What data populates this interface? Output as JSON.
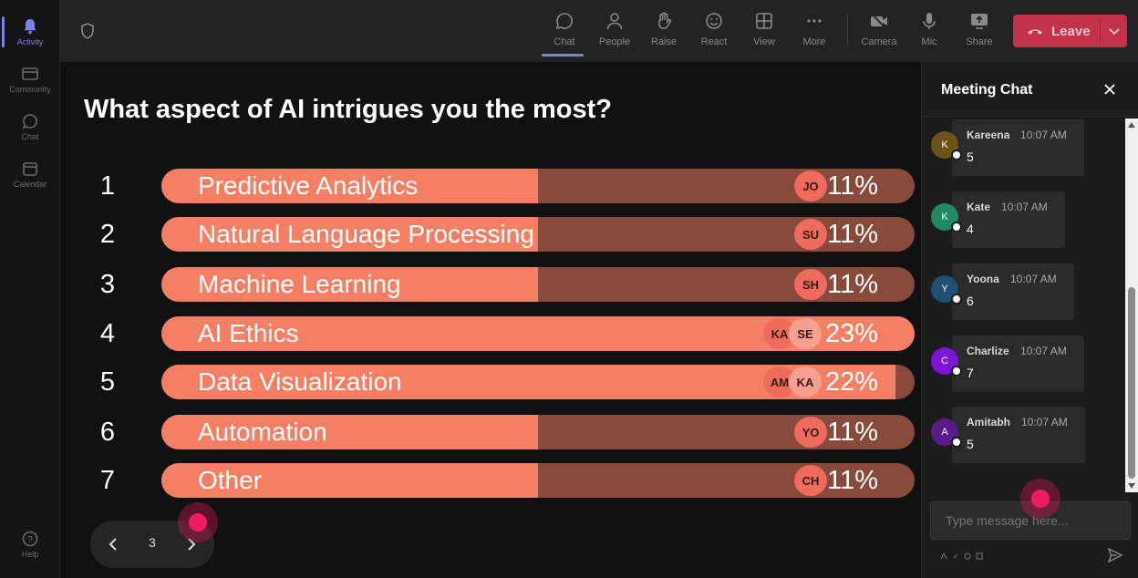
{
  "rail": {
    "items": [
      {
        "label": "Activity",
        "icon": "bell-icon"
      },
      {
        "label": "Community",
        "icon": "community-icon"
      },
      {
        "label": "Chat",
        "icon": "chat-icon"
      },
      {
        "label": "Calendar",
        "icon": "calendar-icon"
      }
    ],
    "help": "Help"
  },
  "toolbar": {
    "chat": "Chat",
    "people": "People",
    "raise": "Raise",
    "react": "React",
    "view": "View",
    "more": "More",
    "camera": "Camera",
    "mic": "Mic",
    "share": "Share",
    "leave": "Leave"
  },
  "poll": {
    "question": "What aspect of AI intrigues you the most?",
    "options": [
      {
        "num": "1",
        "label": "Predictive Analytics",
        "pct": "11%",
        "fraction": 0.5,
        "avatars": [
          "JO"
        ]
      },
      {
        "num": "2",
        "label": "Natural Language Processing",
        "pct": "11%",
        "fraction": 0.5,
        "avatars": [
          "SU"
        ]
      },
      {
        "num": "3",
        "label": "Machine Learning",
        "pct": "11%",
        "fraction": 0.5,
        "avatars": [
          "SH"
        ]
      },
      {
        "num": "4",
        "label": "AI Ethics",
        "pct": "23%",
        "fraction": 1.0,
        "avatars": [
          "KA",
          "SE"
        ]
      },
      {
        "num": "5",
        "label": "Data Visualization",
        "pct": "22%",
        "fraction": 0.975,
        "avatars": [
          "AM",
          "KA"
        ]
      },
      {
        "num": "6",
        "label": "Automation",
        "pct": "11%",
        "fraction": 0.5,
        "avatars": [
          "YO"
        ]
      },
      {
        "num": "7",
        "label": "Other",
        "pct": "11%",
        "fraction": 0.5,
        "avatars": [
          "CH"
        ]
      }
    ]
  },
  "pager": {
    "page": "3"
  },
  "chat": {
    "title": "Meeting Chat",
    "messages": [
      {
        "initial": "K",
        "name": "Kareena",
        "time": "10:07 AM",
        "text": "5",
        "color": "#6b5416"
      },
      {
        "initial": "K",
        "name": "Kate",
        "time": "10:07 AM",
        "text": "4",
        "color": "#1f8a63"
      },
      {
        "initial": "Y",
        "name": "Yoona",
        "time": "10:07 AM",
        "text": "6",
        "color": "#1f4f73"
      },
      {
        "initial": "C",
        "name": "Charlize",
        "time": "10:07 AM",
        "text": "7",
        "color": "#7b14d6"
      },
      {
        "initial": "A",
        "name": "Amitabh",
        "time": "10:07 AM",
        "text": "5",
        "color": "#5a1a8a"
      }
    ],
    "placeholder": "Type message here..."
  }
}
